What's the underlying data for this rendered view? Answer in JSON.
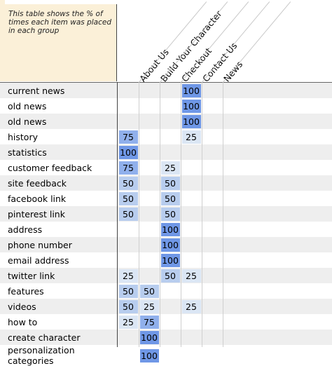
{
  "note": "This table shows the % of times each item was placed in each group",
  "columns": [
    "About Us",
    "Build Your Character",
    "Checkout",
    "Contact Us",
    "News"
  ],
  "rows": [
    {
      "label": "current news",
      "values": [
        "",
        "",
        "",
        "100",
        ""
      ]
    },
    {
      "label": "old news",
      "values": [
        "",
        "",
        "",
        "100",
        ""
      ]
    },
    {
      "label": "old news",
      "values": [
        "",
        "",
        "",
        "100",
        ""
      ]
    },
    {
      "label": "history",
      "values": [
        "75",
        "",
        "",
        "25",
        ""
      ]
    },
    {
      "label": "statistics",
      "values": [
        "100",
        "",
        "",
        "",
        ""
      ]
    },
    {
      "label": "customer feedback",
      "values": [
        "75",
        "",
        "25",
        "",
        ""
      ]
    },
    {
      "label": "site feedback",
      "values": [
        "50",
        "",
        "50",
        "",
        ""
      ]
    },
    {
      "label": "facebook link",
      "values": [
        "50",
        "",
        "50",
        "",
        ""
      ]
    },
    {
      "label": "pinterest link",
      "values": [
        "50",
        "",
        "50",
        "",
        ""
      ]
    },
    {
      "label": "address",
      "values": [
        "",
        "",
        "100",
        "",
        ""
      ]
    },
    {
      "label": "phone number",
      "values": [
        "",
        "",
        "100",
        "",
        ""
      ]
    },
    {
      "label": "email address",
      "values": [
        "",
        "",
        "100",
        "",
        ""
      ]
    },
    {
      "label": "twitter link",
      "values": [
        "25",
        "",
        "50",
        "25",
        ""
      ]
    },
    {
      "label": "features",
      "values": [
        "50",
        "50",
        "",
        "",
        ""
      ]
    },
    {
      "label": "videos",
      "values": [
        "50",
        "25",
        "",
        "25",
        ""
      ]
    },
    {
      "label": "how to",
      "values": [
        "25",
        "75",
        "",
        "",
        ""
      ]
    },
    {
      "label": "create character",
      "values": [
        "",
        "100",
        "",
        "",
        ""
      ]
    },
    {
      "label": "personalization categories",
      "values": [
        "",
        "100",
        "",
        "",
        ""
      ]
    }
  ],
  "colors": {
    "note_bg": "#fbf0d8",
    "shade_25": "#dbe6f4",
    "shade_50": "#b8cdee",
    "shade_75": "#90b0ec",
    "shade_100": "#6f97e6"
  }
}
